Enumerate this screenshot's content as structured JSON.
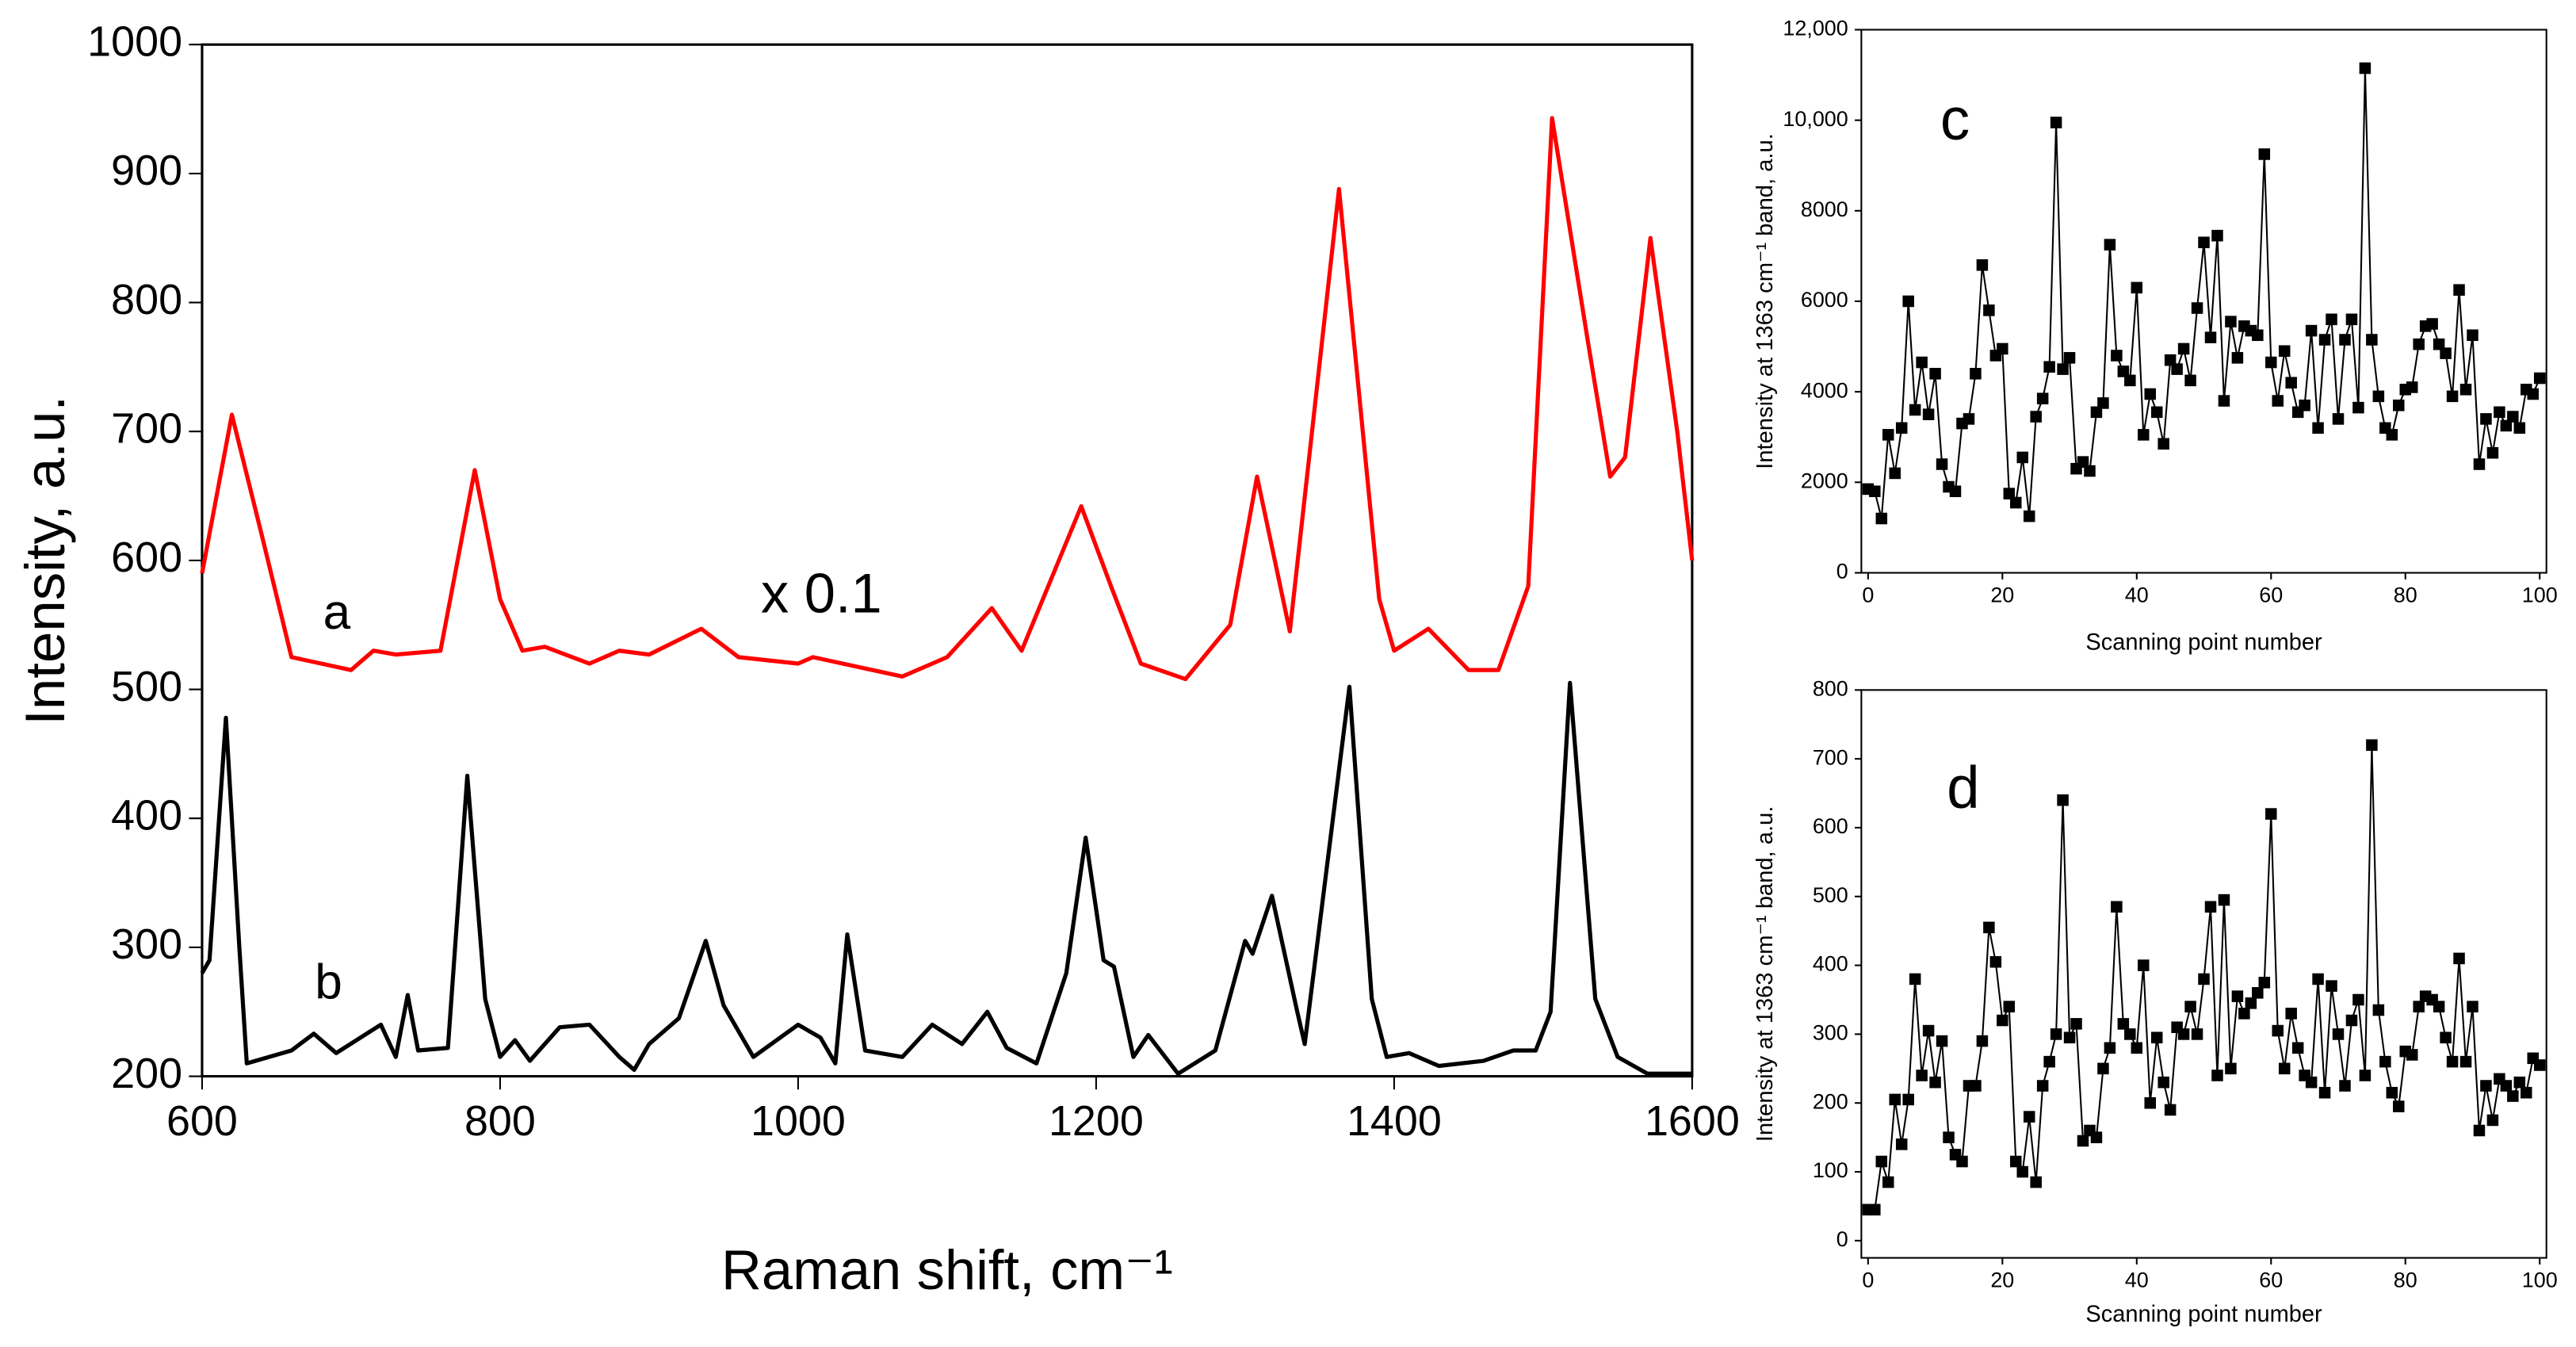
{
  "chart_data": [
    {
      "type": "line",
      "x_label": "Raman shift, cm⁻¹",
      "y_label": "Intensity, a.u.",
      "xlim": [
        600,
        1600
      ],
      "xticks": [
        600,
        800,
        1000,
        1200,
        1400,
        1600
      ],
      "ylim": [
        200,
        1000
      ],
      "yticks": [
        200,
        300,
        400,
        500,
        600,
        700,
        800,
        900,
        1000
      ],
      "annotations": [
        "x 0.1"
      ],
      "series": [
        {
          "name": "a",
          "color": "#ff0000",
          "x": [
            600,
            620,
            640,
            660,
            680,
            700,
            715,
            730,
            760,
            783,
            800,
            815,
            830,
            860,
            880,
            900,
            935,
            960,
            1000,
            1010,
            1050,
            1070,
            1100,
            1130,
            1150,
            1190,
            1210,
            1230,
            1260,
            1290,
            1308,
            1330,
            1363,
            1390,
            1400,
            1423,
            1450,
            1470,
            1490,
            1506,
            1530,
            1545,
            1555,
            1572,
            1590,
            1600
          ],
          "values": [
            590,
            713,
            620,
            525,
            520,
            515,
            530,
            527,
            530,
            670,
            570,
            530,
            533,
            520,
            530,
            527,
            547,
            525,
            520,
            525,
            515,
            510,
            525,
            563,
            530,
            642,
            580,
            520,
            508,
            550,
            665,
            545,
            888,
            570,
            530,
            547,
            515,
            515,
            580,
            943,
            770,
            665,
            680,
            850,
            700,
            600
          ]
        },
        {
          "name": "b",
          "color": "#000000",
          "x": [
            600,
            605,
            616,
            625,
            630,
            660,
            675,
            690,
            720,
            730,
            738,
            745,
            765,
            778,
            790,
            800,
            810,
            820,
            840,
            860,
            880,
            890,
            900,
            920,
            938,
            950,
            970,
            1000,
            1015,
            1025,
            1033,
            1045,
            1070,
            1090,
            1110,
            1127,
            1140,
            1160,
            1180,
            1193,
            1205,
            1212,
            1225,
            1235,
            1255,
            1280,
            1300,
            1305,
            1318,
            1335,
            1340,
            1370,
            1385,
            1395,
            1410,
            1430,
            1460,
            1480,
            1495,
            1505,
            1518,
            1535,
            1550,
            1570,
            1600
          ],
          "values": [
            280,
            290,
            478,
            300,
            210,
            220,
            233,
            218,
            240,
            215,
            263,
            220,
            222,
            433,
            260,
            215,
            228,
            212,
            238,
            240,
            215,
            205,
            225,
            245,
            305,
            255,
            215,
            240,
            230,
            210,
            310,
            220,
            215,
            240,
            225,
            250,
            222,
            210,
            280,
            385,
            290,
            285,
            215,
            232,
            202,
            220,
            305,
            295,
            340,
            250,
            225,
            502,
            260,
            215,
            218,
            208,
            212,
            220,
            220,
            250,
            505,
            260,
            215,
            202,
            202
          ]
        }
      ]
    },
    {
      "type": "line",
      "markers": "square",
      "x_label": "Scanning point number",
      "y_label": "Intensity at 1363 cm⁻¹ band, a.u.",
      "annotations": [
        "c"
      ],
      "xlim": [
        -1,
        101
      ],
      "xticks": [
        0,
        20,
        40,
        60,
        80,
        100
      ],
      "ylim": [
        0,
        12000
      ],
      "yticks": [
        0,
        2000,
        4000,
        6000,
        8000,
        {
          "value": 10000,
          "label": "10,000"
        },
        {
          "value": 12000,
          "label": "12,000"
        }
      ],
      "series": [
        {
          "color": "#000000",
          "x": [
            0,
            1,
            2,
            3,
            4,
            5,
            6,
            7,
            8,
            9,
            10,
            11,
            12,
            13,
            14,
            15,
            16,
            17,
            18,
            19,
            20,
            21,
            22,
            23,
            24,
            25,
            26,
            27,
            28,
            29,
            30,
            31,
            32,
            33,
            34,
            35,
            36,
            37,
            38,
            39,
            40,
            41,
            42,
            43,
            44,
            45,
            46,
            47,
            48,
            49,
            50,
            51,
            52,
            53,
            54,
            55,
            56,
            57,
            58,
            59,
            60,
            61,
            62,
            63,
            64,
            65,
            66,
            67,
            68,
            69,
            70,
            71,
            72,
            73,
            74,
            75,
            76,
            77,
            78,
            79,
            80,
            81,
            82,
            83,
            84,
            85,
            86,
            87,
            88,
            89,
            90,
            91,
            92,
            93,
            94,
            95,
            96,
            97,
            98,
            99,
            100
          ],
          "values": [
            1850,
            1800,
            1200,
            3050,
            2200,
            3200,
            6000,
            3600,
            4650,
            3500,
            4400,
            2400,
            1900,
            1800,
            3300,
            3400,
            4400,
            6800,
            5800,
            4800,
            4950,
            1750,
            1550,
            2550,
            1250,
            3450,
            3850,
            4550,
            9950,
            4500,
            4750,
            2300,
            2450,
            2250,
            3550,
            3750,
            7250,
            4800,
            4450,
            4250,
            6300,
            3050,
            3950,
            3550,
            2850,
            4700,
            4500,
            4950,
            4250,
            5850,
            7300,
            5200,
            7450,
            3800,
            5550,
            4750,
            5450,
            5350,
            5250,
            9250,
            4650,
            3800,
            4900,
            4200,
            3550,
            3700,
            5350,
            3200,
            5150,
            5600,
            3400,
            5150,
            5600,
            3650,
            11150,
            5150,
            3900,
            3200,
            3050,
            3700,
            4050,
            4100,
            5050,
            5450,
            5500,
            5050,
            4850,
            3900,
            6250,
            4050,
            5250,
            2400,
            3400,
            2650,
            3550,
            3250,
            3450,
            3200,
            4050,
            3950,
            4300
          ]
        }
      ]
    },
    {
      "type": "line",
      "markers": "square",
      "x_label": "Scanning point number",
      "y_label": "Intensity at 1363 cm⁻¹ band, a.u.",
      "annotations": [
        "d"
      ],
      "xlim": [
        -1,
        101
      ],
      "xticks": [
        0,
        20,
        40,
        60,
        80,
        100
      ],
      "ylim": [
        -25,
        800
      ],
      "yticks": [
        0,
        100,
        200,
        300,
        400,
        500,
        600,
        700,
        800
      ],
      "series": [
        {
          "color": "#000000",
          "x": [
            0,
            1,
            2,
            3,
            4,
            5,
            6,
            7,
            8,
            9,
            10,
            11,
            12,
            13,
            14,
            15,
            16,
            17,
            18,
            19,
            20,
            21,
            22,
            23,
            24,
            25,
            26,
            27,
            28,
            29,
            30,
            31,
            32,
            33,
            34,
            35,
            36,
            37,
            38,
            39,
            40,
            41,
            42,
            43,
            44,
            45,
            46,
            47,
            48,
            49,
            50,
            51,
            52,
            53,
            54,
            55,
            56,
            57,
            58,
            59,
            60,
            61,
            62,
            63,
            64,
            65,
            66,
            67,
            68,
            69,
            70,
            71,
            72,
            73,
            74,
            75,
            76,
            77,
            78,
            79,
            80,
            81,
            82,
            83,
            84,
            85,
            86,
            87,
            88,
            89,
            90,
            91,
            92,
            93,
            94,
            95,
            96,
            97,
            98,
            99,
            100
          ],
          "values": [
            45,
            45,
            115,
            85,
            205,
            140,
            205,
            380,
            240,
            305,
            230,
            290,
            150,
            125,
            115,
            225,
            225,
            290,
            455,
            405,
            320,
            340,
            115,
            100,
            180,
            85,
            225,
            260,
            300,
            640,
            295,
            315,
            145,
            160,
            150,
            250,
            280,
            485,
            315,
            300,
            280,
            400,
            200,
            295,
            230,
            190,
            310,
            300,
            340,
            300,
            380,
            485,
            240,
            495,
            250,
            355,
            330,
            345,
            360,
            375,
            620,
            305,
            250,
            330,
            280,
            240,
            230,
            380,
            215,
            370,
            300,
            225,
            320,
            350,
            240,
            720,
            335,
            260,
            215,
            195,
            275,
            270,
            340,
            355,
            350,
            340,
            295,
            260,
            410,
            260,
            340,
            160,
            225,
            175,
            235,
            225,
            210,
            230,
            215,
            265,
            255
          ]
        }
      ]
    }
  ]
}
